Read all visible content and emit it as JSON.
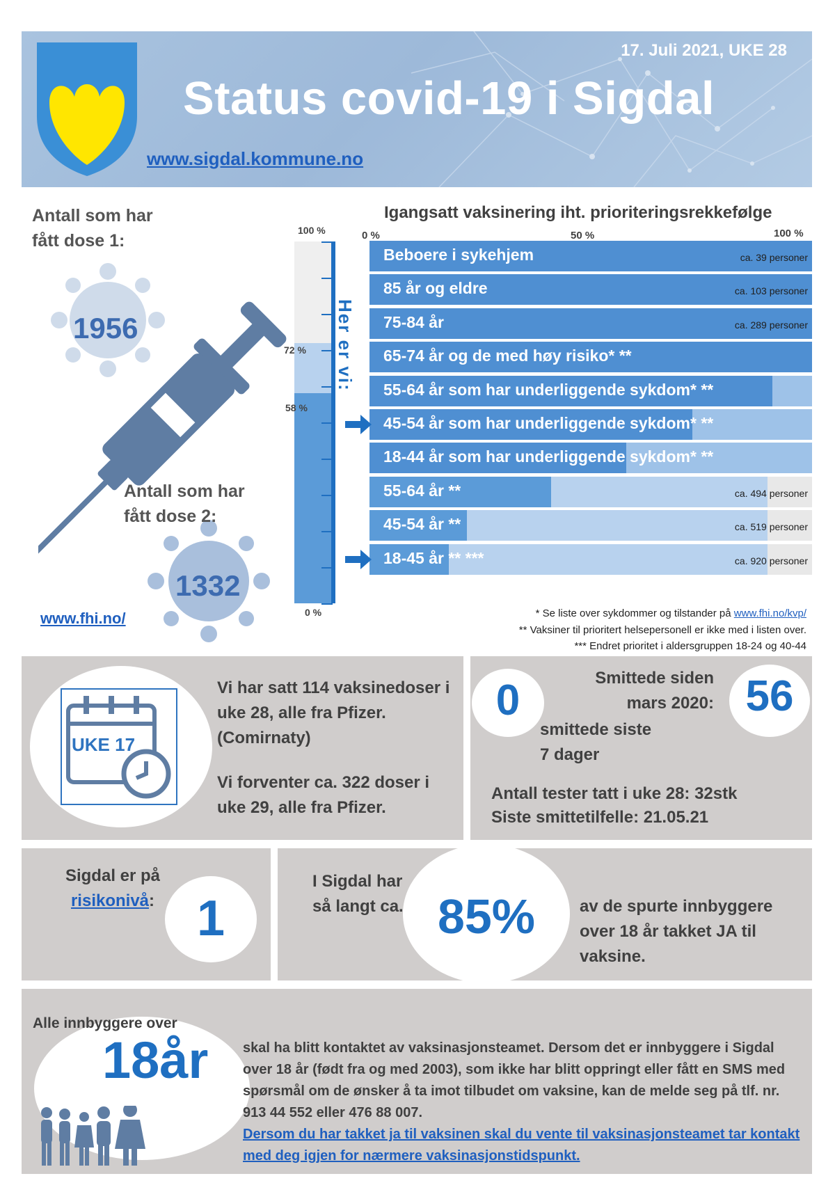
{
  "header": {
    "date": "17. Juli 2021, UKE 28",
    "title": "Status covid-19 i Sigdal",
    "website": "www.sigdal.kommune.no",
    "colors": {
      "banner": "#a9c3df",
      "crest_blue": "#3a8fd6",
      "crest_yellow": "#ffe600"
    }
  },
  "doses": {
    "dose1_label": "Antall som har fått dose 1:",
    "dose1_value": "1956",
    "dose2_label": "Antall som har fått dose 2:",
    "dose2_value": "1332",
    "fhi_link": "www.fhi.no/"
  },
  "gauge": {
    "label_100": "100 %",
    "label_72": "72 %",
    "label_58": "58 %",
    "label_0": "0 %",
    "dose1_percent": 72,
    "dose2_percent": 58,
    "here_label": "Her er vi:"
  },
  "priority": {
    "title": "Igangsatt vaksinering iht. prioriteringsrekkefølge",
    "axis": [
      "0 %",
      "50 %",
      "100 %"
    ],
    "rows": [
      {
        "label": "Beboere i sykehjem",
        "count": "ca. 39 personer",
        "progress": 100,
        "arrow": false
      },
      {
        "label": "85 år og eldre",
        "count": "ca. 103 personer",
        "progress": 100,
        "arrow": false
      },
      {
        "label": "75-84 år",
        "count": "ca. 289 personer",
        "progress": 100,
        "arrow": false
      },
      {
        "label": "65-74 år og de med høy risiko*  **",
        "count": "",
        "progress": 100,
        "arrow": false
      },
      {
        "label": "55-64 år som har underliggende sykdom* **",
        "count": "",
        "progress": 91,
        "arrow": false
      },
      {
        "label": "45-54 år som har underliggende sykdom*  **",
        "count": "",
        "progress": 73,
        "arrow": true
      },
      {
        "label": "18-44 år som har underliggende sykdom*  **",
        "count": "",
        "progress": 58,
        "arrow": false
      },
      {
        "label": "55-64 år **",
        "count": "ca. 494 personer",
        "progress": 41,
        "arrow": false
      },
      {
        "label": "45-54 år **",
        "count": "ca. 519 personer",
        "progress": 22,
        "arrow": false
      },
      {
        "label": "18-45 år **     ***",
        "count": "ca. 920 personer",
        "progress": 18,
        "arrow": true
      }
    ],
    "notes": {
      "note1_text": "* Se liste over sykdommer og tilstander på ",
      "note1_link": "www.fhi.no/kvp/",
      "note2": "** Vaksiner til prioritert helsepersonell er ikke med i listen over.",
      "note3": "*** Endret prioritet i aldersgruppen 18-24 og 40-44"
    }
  },
  "vaccines": {
    "calendar_label": "UKE 17",
    "text1": "Vi har satt 114 vaksinedoser i uke 28, alle fra Pfizer. (Comirnaty)",
    "text2": "Vi forventer ca. 322 doser i uke 29, alle fra Pfizer."
  },
  "infections": {
    "last7_value": "0",
    "last7_label": "smittede siste 7 dager",
    "since_label": "Smittede siden mars 2020:",
    "since_value": "56",
    "tests": "Antall tester tatt i uke 28: 32stk",
    "last_case": "Siste smittetilfelle: 21.05.21"
  },
  "risk": {
    "label_prefix": "Sigdal er på",
    "link": "risikonivå",
    "suffix": ":",
    "value": "1"
  },
  "acceptance": {
    "prefix": "I Sigdal har så langt ca.",
    "value": "85%",
    "suffix": "av de spurte innbyggere over 18 år takket JA til vaksine."
  },
  "contact": {
    "lead": "Alle innbyggere over",
    "age": "18år",
    "text": "skal ha blitt kontaktet av vaksinasjonsteamet. Dersom det er innbyggere i Sigdal over 18 år (født fra og med 2003), som ikke har blitt oppringt eller fått en SMS med spørsmål om de ønsker å ta imot tilbudet om vaksine, kan de melde seg på tlf. nr. 913 44 552 eller 476 88 007.",
    "link": "Dersom du har takket ja til vaksinen skal du vente til vaksinasjonsteamet tar kontakt med deg igjen for nærmere vaksinasjonstidspunkt."
  }
}
